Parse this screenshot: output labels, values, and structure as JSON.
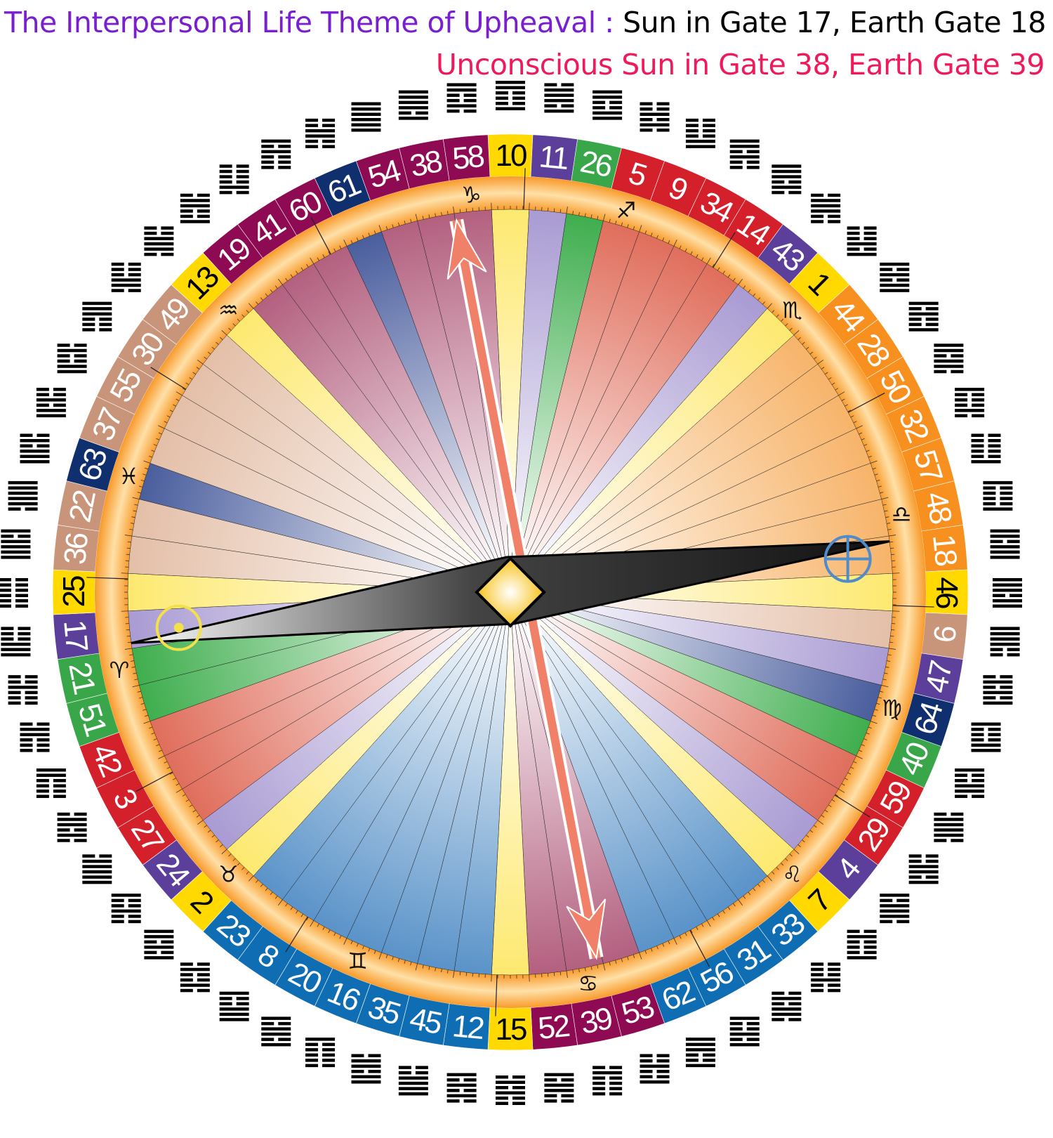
{
  "title": {
    "theme": "The Interpersonal Life Theme of Upheaval :",
    "conscious": " Sun in Gate 17, Earth Gate 18",
    "unconscious": "Unconscious Sun in Gate 38, Earth Gate 39",
    "theme_color": "#7a1fd0",
    "conscious_color": "#000000",
    "unconscious_color": "#ee1a5a"
  },
  "wheel": {
    "gates_clockwise_from_top": [
      10,
      11,
      26,
      5,
      9,
      34,
      14,
      43,
      1,
      44,
      28,
      50,
      32,
      57,
      48,
      18,
      46,
      6,
      47,
      64,
      40,
      59,
      29,
      4,
      7,
      33,
      31,
      56,
      62,
      53,
      39,
      52,
      15,
      12,
      45,
      35,
      16,
      20,
      8,
      23,
      2,
      24,
      27,
      3,
      42,
      51,
      21,
      17,
      25,
      36,
      22,
      63,
      37,
      55,
      30,
      49,
      13,
      19,
      41,
      60,
      61,
      54,
      38,
      58
    ],
    "gate_color_groups": [
      "yellow",
      "purple",
      "green",
      "red",
      "red",
      "red",
      "red",
      "purple",
      "yellow",
      "orange",
      "orange",
      "orange",
      "orange",
      "orange",
      "orange",
      "orange",
      "yellow",
      "tan",
      "purple",
      "navy",
      "green",
      "red",
      "red",
      "purple",
      "yellow",
      "blue",
      "blue",
      "blue",
      "blue",
      "maroon",
      "maroon",
      "maroon",
      "yellow",
      "blue",
      "blue",
      "blue",
      "blue",
      "blue",
      "blue",
      "blue",
      "yellow",
      "purple",
      "red",
      "red",
      "red",
      "green",
      "green",
      "purple",
      "yellow",
      "tan",
      "tan",
      "navy",
      "tan",
      "tan",
      "tan",
      "tan",
      "yellow",
      "maroon",
      "maroon",
      "maroon",
      "navy",
      "maroon",
      "maroon",
      "maroon"
    ],
    "colors": {
      "yellow": {
        "band": "#ffd900",
        "wedge": "#fde970",
        "text": "#000000"
      },
      "purple": {
        "band": "#5b3f9a",
        "wedge": "#a99bd3",
        "text": "#ffffff"
      },
      "green": {
        "band": "#3aa64a",
        "wedge": "#3fae4e",
        "text": "#ffffff"
      },
      "red": {
        "band": "#d4202a",
        "wedge": "#e06e5c",
        "text": "#ffffff"
      },
      "orange": {
        "band": "#f7901e",
        "wedge": "#f7b46a",
        "text": "#ffffff"
      },
      "tan": {
        "band": "#c9957a",
        "wedge": "#e4bfa8",
        "text": "#ffffff"
      },
      "navy": {
        "band": "#0f2f6e",
        "wedge": "#4a5e9e",
        "text": "#ffffff"
      },
      "blue": {
        "band": "#0f6db3",
        "wedge": "#5a93c9",
        "text": "#ffffff"
      },
      "maroon": {
        "band": "#8e0a52",
        "wedge": "#b3607f",
        "text": "#ffffff"
      }
    },
    "zodiac": [
      {
        "glyph": "♑",
        "gate": 58
      },
      {
        "glyph": "♐",
        "gate": 5
      },
      {
        "glyph": "♏",
        "gate": 1
      },
      {
        "glyph": "♎",
        "gate": 48
      },
      {
        "glyph": "♍",
        "gate": 64
      },
      {
        "glyph": "♌",
        "gate": 7
      },
      {
        "glyph": "♋",
        "gate": 39
      },
      {
        "glyph": "♊",
        "gate": 16
      },
      {
        "glyph": "♉",
        "gate": 2
      },
      {
        "glyph": "♈",
        "gate": 21
      },
      {
        "glyph": "♓",
        "gate": 63
      },
      {
        "glyph": "♒",
        "gate": 13
      }
    ],
    "personality_sun_gate": 17,
    "personality_earth_gate": 18,
    "design_sun_gate": 38,
    "design_earth_gate": 39,
    "sun_symbol_color": "#f3e04a",
    "earth_symbol_color": "#4f8cc9",
    "design_arrow_color": "#f08068"
  }
}
